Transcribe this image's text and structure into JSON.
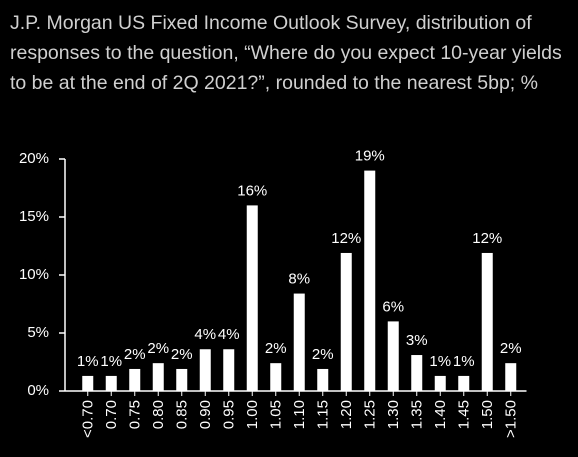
{
  "chart_data": {
    "type": "bar",
    "title": "J.P. Morgan US Fixed Income Outlook Survey, distribution of responses to the question, “Where do you expect 10-year yields to be at the end of 2Q 2021?”, rounded to the nearest 5bp; %",
    "categories": [
      "<0.70",
      "0.70",
      "0.75",
      "0.80",
      "0.85",
      "0.90",
      "0.95",
      "1.00",
      "1.05",
      "1.10",
      "1.15",
      "1.20",
      "1.25",
      "1.30",
      "1.35",
      "1.40",
      "1.45",
      "1.50",
      ">1.50"
    ],
    "values": [
      1.3,
      1.3,
      1.9,
      2.4,
      1.9,
      3.6,
      3.6,
      16.0,
      2.4,
      8.4,
      1.9,
      11.9,
      19.0,
      6.0,
      3.1,
      1.3,
      1.3,
      11.9,
      2.4
    ],
    "value_labels": [
      "1%",
      "1%",
      "2%",
      "2%",
      "2%",
      "4%",
      "4%",
      "16%",
      "2%",
      "8%",
      "2%",
      "12%",
      "19%",
      "6%",
      "3%",
      "1%",
      "1%",
      "12%",
      "2%"
    ],
    "color": "#ffffff",
    "ylim": [
      0,
      20
    ],
    "yticks": [
      {
        "value": 0,
        "label": "0%"
      },
      {
        "value": 5,
        "label": "5%"
      },
      {
        "value": 10,
        "label": "10%"
      },
      {
        "value": 15,
        "label": "15%"
      },
      {
        "value": 20,
        "label": "20%"
      }
    ],
    "grid": false
  }
}
